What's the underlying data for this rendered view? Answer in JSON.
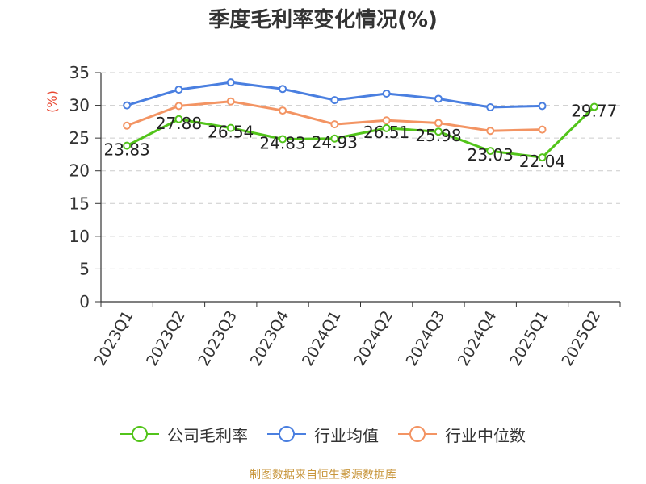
{
  "chart_data": {
    "type": "line",
    "title": "季度毛利率变化情况(%)",
    "ylabel": "(%)",
    "xlabel": "",
    "categories": [
      "2023Q1",
      "2023Q2",
      "2023Q3",
      "2023Q4",
      "2024Q1",
      "2024Q2",
      "2024Q3",
      "2024Q4",
      "2025Q1",
      "2025Q2"
    ],
    "ylim": [
      0,
      35
    ],
    "yticks": [
      0,
      5,
      10,
      15,
      20,
      25,
      30,
      35
    ],
    "grid": true,
    "legend_position": "bottom",
    "series": [
      {
        "name": "公司毛利率",
        "color": "#52c41a",
        "labeled": true,
        "values": [
          23.83,
          27.88,
          26.54,
          24.83,
          24.93,
          26.51,
          25.98,
          23.03,
          22.04,
          29.77
        ]
      },
      {
        "name": "行业均值",
        "color": "#4a7fe0",
        "labeled": false,
        "values": [
          30.0,
          32.4,
          33.5,
          32.5,
          30.8,
          31.8,
          31.0,
          29.7,
          29.9,
          null
        ]
      },
      {
        "name": "行业中位数",
        "color": "#f39463",
        "labeled": false,
        "values": [
          26.9,
          29.9,
          30.6,
          29.2,
          27.1,
          27.7,
          27.3,
          26.1,
          26.3,
          null
        ]
      }
    ],
    "source": "制图数据来自恒生聚源数据库"
  }
}
